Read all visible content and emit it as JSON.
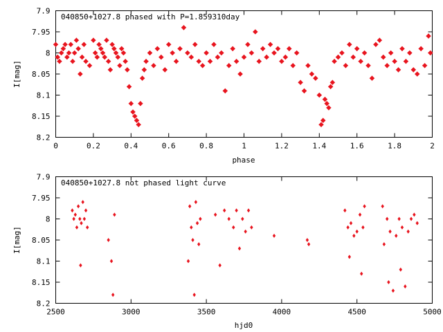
{
  "colors": {
    "points": "#e8141e",
    "axes": "#000000",
    "background": "#ffffff"
  },
  "chart_data": [
    {
      "type": "scatter",
      "title": "040850+1027.8 phased with P=1.859310day",
      "xlabel": "phase",
      "ylabel": "I[mag]",
      "xlim": [
        0,
        2
      ],
      "ylim": [
        8.2,
        7.9
      ],
      "y_inverted": true,
      "x_ticks": [
        "0",
        "0.2",
        "0.4",
        "0.6",
        "0.8",
        "1",
        "1.2",
        "1.4",
        "1.6",
        "1.8",
        "2"
      ],
      "y_ticks": [
        "7.9",
        "7.95",
        "8",
        "8.05",
        "8.1",
        "8.15",
        "8.2"
      ],
      "grid": false,
      "marker": "filled-star",
      "points": [
        [
          0,
          7.98
        ],
        [
          0.01,
          8.01
        ],
        [
          0.02,
          8.02
        ],
        [
          0.03,
          8.0
        ],
        [
          0.04,
          7.99
        ],
        [
          0.05,
          7.98
        ],
        [
          0.06,
          8.01
        ],
        [
          0.07,
          8.0
        ],
        [
          0.08,
          7.98
        ],
        [
          0.09,
          8.02
        ],
        [
          0.1,
          8.0
        ],
        [
          0.11,
          7.97
        ],
        [
          0.12,
          7.99
        ],
        [
          0.13,
          8.05
        ],
        [
          0.14,
          8.01
        ],
        [
          0.15,
          7.98
        ],
        [
          0.16,
          8.02
        ],
        [
          0.18,
          8.03
        ],
        [
          0.2,
          7.97
        ],
        [
          0.21,
          8.0
        ],
        [
          0.22,
          8.01
        ],
        [
          0.23,
          7.98
        ],
        [
          0.24,
          7.99
        ],
        [
          0.25,
          8.0
        ],
        [
          0.26,
          8.01
        ],
        [
          0.27,
          7.97
        ],
        [
          0.28,
          8.02
        ],
        [
          0.29,
          8.04
        ],
        [
          0.3,
          7.98
        ],
        [
          0.31,
          7.99
        ],
        [
          0.32,
          8.0
        ],
        [
          0.33,
          8.01
        ],
        [
          0.34,
          8.03
        ],
        [
          0.35,
          7.99
        ],
        [
          0.36,
          8.0
        ],
        [
          0.37,
          8.02
        ],
        [
          0.38,
          8.04
        ],
        [
          0.39,
          8.08
        ],
        [
          0.4,
          8.12
        ],
        [
          0.41,
          8.14
        ],
        [
          0.42,
          8.15
        ],
        [
          0.43,
          8.16
        ],
        [
          0.44,
          8.17
        ],
        [
          0.45,
          8.12
        ],
        [
          0.46,
          8.06
        ],
        [
          0.47,
          8.04
        ],
        [
          0.48,
          8.02
        ],
        [
          0.5,
          8.0
        ],
        [
          0.52,
          8.03
        ],
        [
          0.54,
          7.99
        ],
        [
          0.56,
          8.01
        ],
        [
          0.58,
          8.04
        ],
        [
          0.6,
          7.98
        ],
        [
          0.62,
          8.0
        ],
        [
          0.64,
          8.02
        ],
        [
          0.66,
          7.99
        ],
        [
          0.68,
          7.94
        ],
        [
          0.7,
          8.0
        ],
        [
          0.72,
          8.01
        ],
        [
          0.74,
          7.98
        ],
        [
          0.76,
          8.02
        ],
        [
          0.78,
          8.03
        ],
        [
          0.8,
          8.0
        ],
        [
          0.82,
          8.02
        ],
        [
          0.84,
          7.98
        ],
        [
          0.86,
          8.01
        ],
        [
          0.88,
          8.0
        ],
        [
          0.9,
          8.09
        ],
        [
          0.92,
          8.03
        ],
        [
          0.94,
          7.99
        ],
        [
          0.96,
          8.02
        ],
        [
          0.98,
          8.05
        ],
        [
          1.0,
          8.01
        ],
        [
          1.02,
          7.98
        ],
        [
          1.04,
          8.0
        ],
        [
          1.06,
          7.95
        ],
        [
          1.08,
          8.02
        ],
        [
          1.1,
          7.99
        ],
        [
          1.12,
          8.01
        ],
        [
          1.14,
          7.98
        ],
        [
          1.16,
          8.0
        ],
        [
          1.18,
          7.99
        ],
        [
          1.2,
          8.02
        ],
        [
          1.22,
          8.01
        ],
        [
          1.24,
          7.99
        ],
        [
          1.26,
          8.03
        ],
        [
          1.28,
          8.0
        ],
        [
          1.3,
          8.07
        ],
        [
          1.32,
          8.09
        ],
        [
          1.34,
          8.03
        ],
        [
          1.36,
          8.05
        ],
        [
          1.38,
          8.06
        ],
        [
          1.4,
          8.1
        ],
        [
          1.41,
          8.17
        ],
        [
          1.42,
          8.16
        ],
        [
          1.43,
          8.11
        ],
        [
          1.44,
          8.12
        ],
        [
          1.45,
          8.13
        ],
        [
          1.46,
          8.08
        ],
        [
          1.47,
          8.07
        ],
        [
          1.48,
          8.02
        ],
        [
          1.5,
          8.01
        ],
        [
          1.52,
          8.0
        ],
        [
          1.54,
          8.03
        ],
        [
          1.56,
          7.98
        ],
        [
          1.58,
          8.01
        ],
        [
          1.6,
          7.99
        ],
        [
          1.62,
          8.02
        ],
        [
          1.64,
          8.0
        ],
        [
          1.66,
          8.03
        ],
        [
          1.68,
          8.06
        ],
        [
          1.7,
          7.98
        ],
        [
          1.72,
          7.97
        ],
        [
          1.74,
          8.01
        ],
        [
          1.76,
          8.03
        ],
        [
          1.78,
          8.0
        ],
        [
          1.8,
          8.02
        ],
        [
          1.82,
          8.04
        ],
        [
          1.84,
          7.99
        ],
        [
          1.86,
          8.02
        ],
        [
          1.88,
          8.0
        ],
        [
          1.9,
          8.04
        ],
        [
          1.92,
          8.05
        ],
        [
          1.94,
          7.99
        ],
        [
          1.96,
          8.03
        ],
        [
          1.98,
          7.96
        ],
        [
          1.99,
          8.0
        ]
      ]
    },
    {
      "type": "scatter",
      "title": "040850+1027.8 not phased light curve",
      "xlabel": "hjd0",
      "ylabel": "I[mag]",
      "xlim": [
        2500,
        5000
      ],
      "ylim": [
        8.2,
        7.9
      ],
      "y_inverted": true,
      "x_ticks": [
        "2500",
        "3000",
        "3500",
        "4000",
        "4500",
        "5000"
      ],
      "y_ticks": [
        "7.9",
        "7.95",
        "8",
        "8.05",
        "8.1",
        "8.15",
        "8.2"
      ],
      "grid": false,
      "marker": "filled-diamond",
      "points": [
        [
          2610,
          7.98
        ],
        [
          2620,
          8.0
        ],
        [
          2630,
          7.99
        ],
        [
          2640,
          8.02
        ],
        [
          2650,
          7.97
        ],
        [
          2660,
          8.0
        ],
        [
          2665,
          8.11
        ],
        [
          2670,
          8.01
        ],
        [
          2680,
          7.96
        ],
        [
          2690,
          8.0
        ],
        [
          2700,
          7.98
        ],
        [
          2710,
          8.02
        ],
        [
          2850,
          8.05
        ],
        [
          2870,
          8.1
        ],
        [
          2880,
          8.18
        ],
        [
          2890,
          7.99
        ],
        [
          3380,
          8.1
        ],
        [
          3390,
          7.97
        ],
        [
          3400,
          8.02
        ],
        [
          3410,
          8.05
        ],
        [
          3420,
          8.18
        ],
        [
          3430,
          7.96
        ],
        [
          3440,
          8.01
        ],
        [
          3450,
          8.06
        ],
        [
          3460,
          8.0
        ],
        [
          3560,
          7.99
        ],
        [
          3590,
          8.11
        ],
        [
          3620,
          7.98
        ],
        [
          3650,
          8.0
        ],
        [
          3680,
          8.02
        ],
        [
          3700,
          7.98
        ],
        [
          3720,
          8.07
        ],
        [
          3740,
          8.0
        ],
        [
          3760,
          8.03
        ],
        [
          3780,
          7.98
        ],
        [
          3800,
          8.02
        ],
        [
          3950,
          8.04
        ],
        [
          4170,
          8.05
        ],
        [
          4180,
          8.06
        ],
        [
          4420,
          7.98
        ],
        [
          4440,
          8.02
        ],
        [
          4450,
          8.09
        ],
        [
          4460,
          8.01
        ],
        [
          4480,
          8.04
        ],
        [
          4500,
          8.03
        ],
        [
          4520,
          7.99
        ],
        [
          4530,
          8.13
        ],
        [
          4540,
          8.02
        ],
        [
          4550,
          7.97
        ],
        [
          4670,
          7.97
        ],
        [
          4680,
          8.06
        ],
        [
          4700,
          8.0
        ],
        [
          4710,
          8.15
        ],
        [
          4720,
          8.03
        ],
        [
          4740,
          8.17
        ],
        [
          4760,
          8.04
        ],
        [
          4780,
          8.0
        ],
        [
          4790,
          8.12
        ],
        [
          4800,
          8.02
        ],
        [
          4820,
          8.16
        ],
        [
          4840,
          8.03
        ],
        [
          4860,
          8.0
        ],
        [
          4880,
          7.99
        ],
        [
          4900,
          8.01
        ]
      ]
    }
  ]
}
